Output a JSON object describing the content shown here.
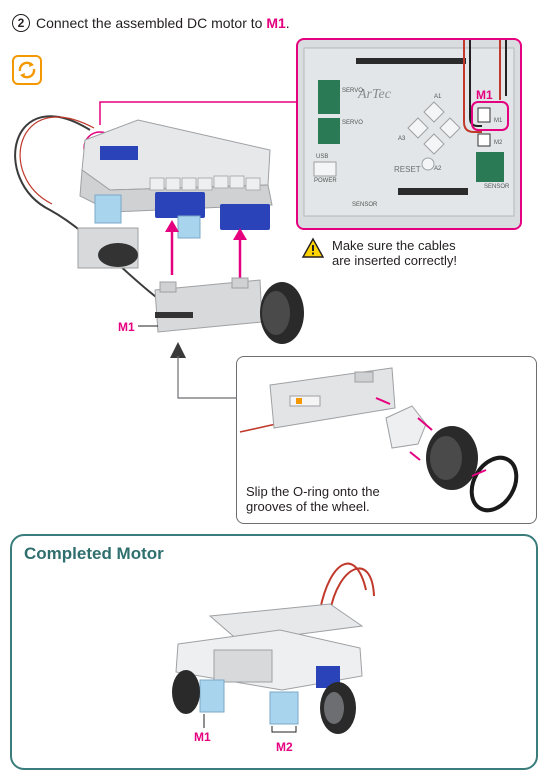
{
  "step": {
    "number": "2",
    "instruction_prefix": "Connect the assembled DC motor to ",
    "instruction_port": "M1",
    "instruction_suffix": "."
  },
  "board": {
    "port_callout": "M1",
    "reset_label": "RESET",
    "logo_text": "ArTec",
    "labels": [
      "SERVO",
      "SERVO",
      "SENSOR",
      "SENSOR",
      "USB",
      "POWER",
      "A1",
      "A2",
      "A3",
      "M1",
      "M2"
    ]
  },
  "warning": {
    "line1": "Make sure the cables",
    "line2": "are inserted correctly!"
  },
  "main_diagram": {
    "motor_label": "M1"
  },
  "detail": {
    "caption_line1": "Slip the O-ring onto the",
    "caption_line2": "grooves of the wheel."
  },
  "completed": {
    "title": "Completed Motor",
    "label_m1": "M1",
    "label_m2": "M2"
  },
  "colors": {
    "accent_pink": "#e5007f",
    "teal": "#3a7d7c",
    "orange": "#f39800",
    "servo_blue": "#2b43b8",
    "block_light_blue": "#a9d4ee",
    "block_gray": "#d8d9da"
  }
}
